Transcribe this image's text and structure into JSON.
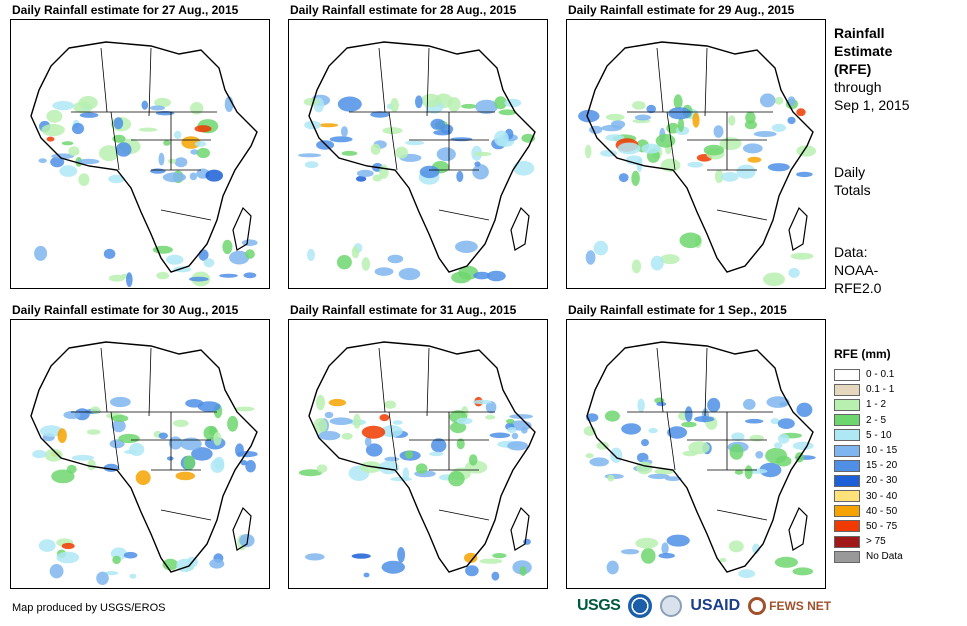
{
  "panels": [
    {
      "title": "Daily Rainfall estimate for 27 Aug., 2015"
    },
    {
      "title": "Daily Rainfall estimate for 28 Aug., 2015"
    },
    {
      "title": "Daily Rainfall estimate for 29 Aug., 2015"
    },
    {
      "title": "Daily Rainfall estimate for 30 Aug., 2015"
    },
    {
      "title": "Daily Rainfall estimate for 31 Aug., 2015"
    },
    {
      "title": "Daily Rainfall estimate for 1 Sep., 2015"
    }
  ],
  "side": {
    "title_line1": "Rainfall",
    "title_line2": "Estimate",
    "title_line3": "(RFE)",
    "through_line1": "through",
    "through_line2": "Sep 1, 2015",
    "totals_line1": "Daily",
    "totals_line2": "Totals",
    "data_line1": "Data:",
    "data_line2": "NOAA-",
    "data_line3": "RFE2.0"
  },
  "legend": {
    "title": "RFE (mm)",
    "items": [
      {
        "label": "0 - 0.1",
        "color": "#ffffff"
      },
      {
        "label": "0.1 - 1",
        "color": "#e6d8bf"
      },
      {
        "label": "1 - 2",
        "color": "#b8f0b0"
      },
      {
        "label": "2 - 5",
        "color": "#6ed66e"
      },
      {
        "label": "5 - 10",
        "color": "#aee8f5"
      },
      {
        "label": "10 - 15",
        "color": "#7fb6ef"
      },
      {
        "label": "15 - 20",
        "color": "#4f8fe6"
      },
      {
        "label": "20 - 30",
        "color": "#1c5fd6"
      },
      {
        "label": "30 - 40",
        "color": "#ffe27a"
      },
      {
        "label": "40 - 50",
        "color": "#f5a300"
      },
      {
        "label": "50 - 75",
        "color": "#f03a00"
      },
      {
        "label": "> 75",
        "color": "#a01818"
      },
      {
        "label": "No Data",
        "color": "#999999"
      }
    ]
  },
  "credit": "Map produced by USGS/EROS",
  "logos": {
    "usgs": "USGS",
    "usaid": "USAID",
    "fews": "FEWS NET"
  }
}
